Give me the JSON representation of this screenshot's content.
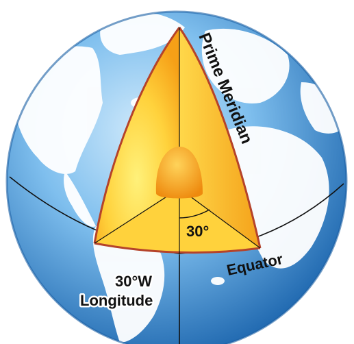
{
  "labels": {
    "prime_meridian": "Prime Meridian",
    "equator": "Equator",
    "angle": "30°",
    "longitude_line1": "30°W",
    "longitude_line2": "Longitude"
  },
  "colors": {
    "ocean_light": "#bfe1f6",
    "ocean_mid": "#5aa9e2",
    "ocean_dark": "#1f6fb8",
    "land": "#ffffff",
    "wedge_outer": "#f7a818",
    "wedge_inner": "#ffe46a",
    "wedge_edge": "#b5432a",
    "core_outer": "#f08a10",
    "core_inner": "#ffc94a",
    "line": "#111111"
  }
}
